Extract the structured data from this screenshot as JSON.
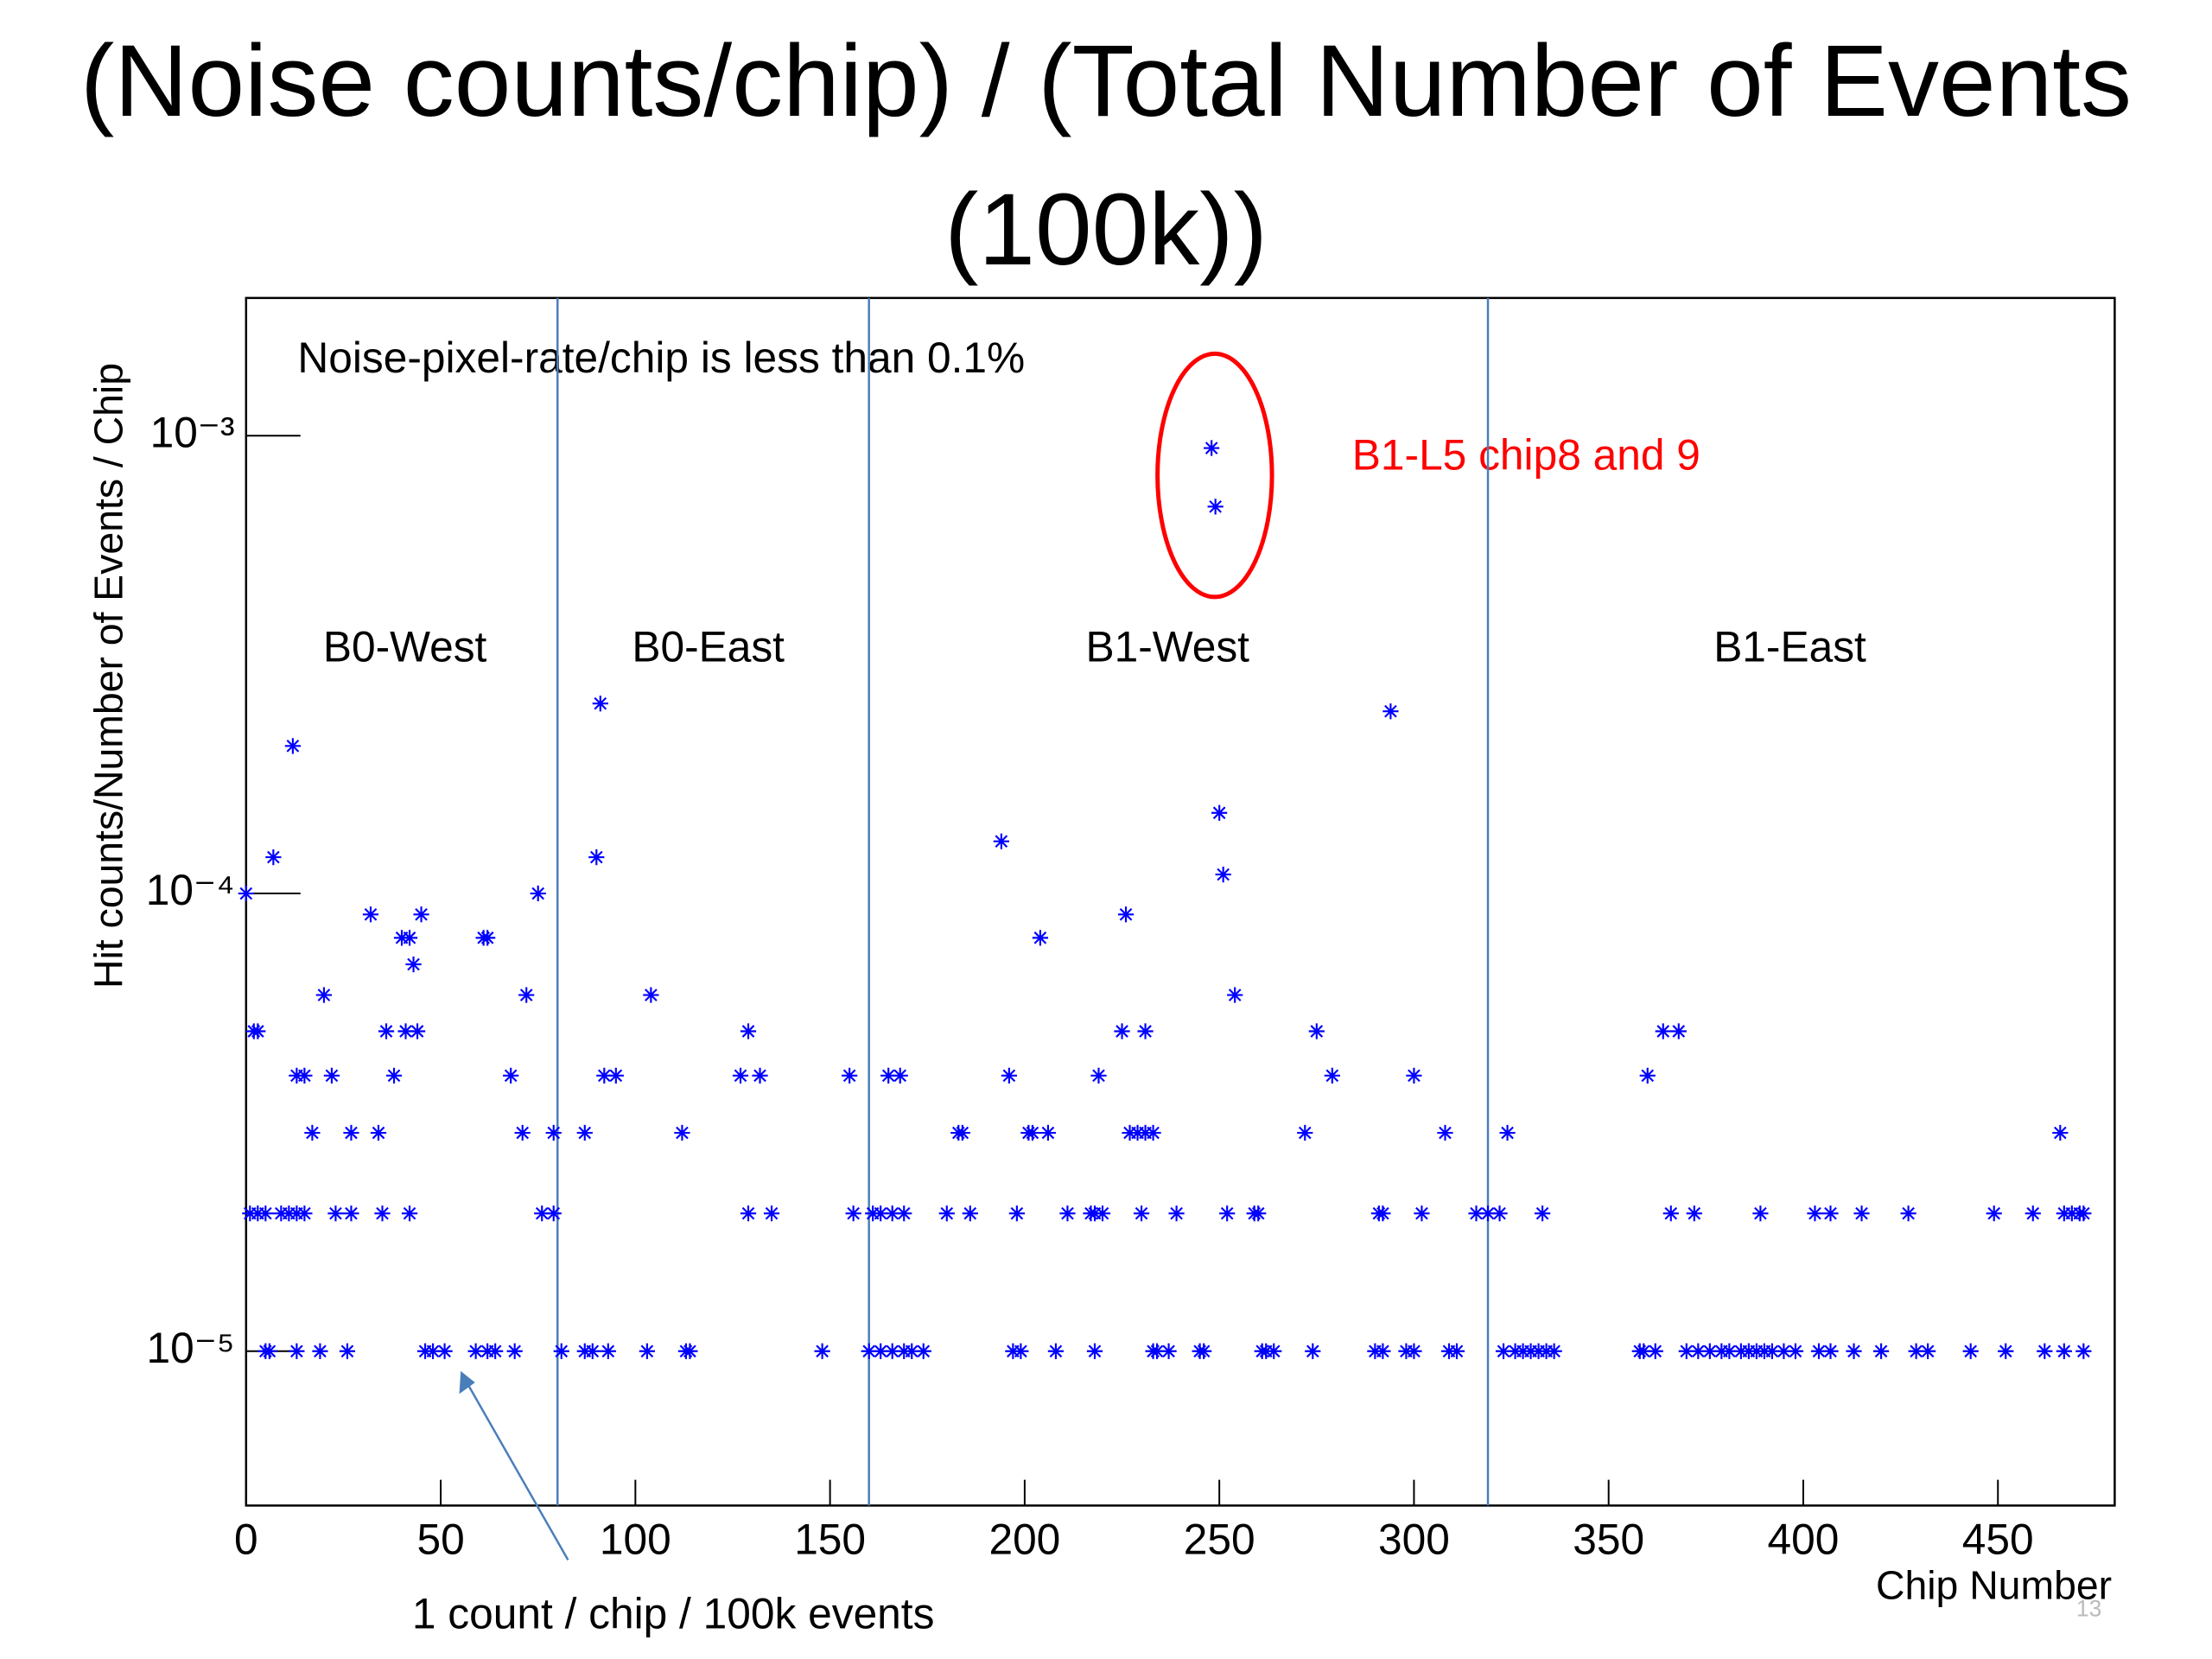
{
  "chart_data": {
    "type": "scatter",
    "title": "(Noise counts/chip) / (Total Number of Events (100k))",
    "x_label": "Chip Number",
    "y_label": "Hit counts/Number of Events / Chip",
    "log_y": true,
    "color": "#0000ff",
    "xlim": [
      0,
      480
    ],
    "xticks": [
      0,
      50,
      100,
      150,
      200,
      250,
      300,
      350,
      400,
      450
    ],
    "ylim": [
      4.6e-06,
      0.002
    ],
    "yticks": [
      {
        "value": 1e-05,
        "label": "10⁻⁵"
      },
      {
        "value": 0.0001,
        "label": "10⁻⁴"
      },
      {
        "value": 0.001,
        "label": "10⁻³"
      }
    ],
    "dividers": [
      80,
      160,
      319
    ],
    "regions": [
      "B0-West",
      "B0-East",
      "B1-West",
      "B1-East"
    ],
    "annotations": [
      "Noise-pixel-rate/chip is less than 0.1%",
      "B1-L5 chip8 and 9",
      "1 count / chip / 100k events"
    ],
    "page_number": "13",
    "x": [
      5,
      6,
      13,
      19,
      26,
      46,
      48,
      51,
      59,
      62,
      64,
      69,
      81,
      87,
      89,
      93,
      103,
      113,
      114,
      148,
      160,
      163,
      166,
      169,
      171,
      174,
      197,
      199,
      208,
      218,
      233,
      234,
      237,
      245,
      246,
      261,
      262,
      264,
      274,
      290,
      292,
      298,
      300,
      309,
      311,
      323,
      326,
      328,
      330,
      332,
      334,
      336,
      358,
      359,
      362,
      370,
      373,
      376,
      379,
      381,
      384,
      386,
      388,
      390,
      392,
      395,
      398,
      404,
      407,
      413,
      420,
      429,
      432,
      443,
      452,
      462,
      467,
      472,
      1,
      3,
      5,
      9,
      11,
      13,
      15,
      23,
      27,
      35,
      42,
      76,
      79,
      129,
      135,
      156,
      161,
      163,
      166,
      169,
      180,
      186,
      198,
      211,
      217,
      218,
      220,
      230,
      239,
      252,
      259,
      260,
      291,
      292,
      302,
      316,
      319,
      322,
      333,
      366,
      372,
      389,
      403,
      407,
      415,
      427,
      449,
      459,
      467,
      469,
      471,
      472,
      17,
      27,
      34,
      71,
      79,
      87,
      112,
      183,
      184,
      201,
      202,
      206,
      227,
      229,
      231,
      233,
      272,
      308,
      324,
      466,
      13,
      15,
      22,
      38,
      68,
      92,
      95,
      127,
      132,
      155,
      165,
      168,
      196,
      219,
      279,
      300,
      360,
      2,
      3,
      36,
      41,
      44,
      129,
      225,
      231,
      275,
      364,
      368,
      20,
      72,
      104,
      254,
      43,
      40,
      42,
      61,
      62,
      204,
      32,
      45,
      226,
      0,
      75,
      251,
      7,
      90,
      194,
      250,
      12,
      294,
      91,
      249,
      248
    ],
    "values": [
      1e-05,
      1e-05,
      1e-05,
      1e-05,
      1e-05,
      1e-05,
      1e-05,
      1e-05,
      1e-05,
      1e-05,
      1e-05,
      1e-05,
      1e-05,
      1e-05,
      1e-05,
      1e-05,
      1e-05,
      1e-05,
      1e-05,
      1e-05,
      1e-05,
      1e-05,
      1e-05,
      1e-05,
      1e-05,
      1e-05,
      1e-05,
      1e-05,
      1e-05,
      1e-05,
      1e-05,
      1e-05,
      1e-05,
      1e-05,
      1e-05,
      1e-05,
      1e-05,
      1e-05,
      1e-05,
      1e-05,
      1e-05,
      1e-05,
      1e-05,
      1e-05,
      1e-05,
      1e-05,
      1e-05,
      1e-05,
      1e-05,
      1e-05,
      1e-05,
      1e-05,
      1e-05,
      1e-05,
      1e-05,
      1e-05,
      1e-05,
      1e-05,
      1e-05,
      1e-05,
      1e-05,
      1e-05,
      1e-05,
      1e-05,
      1e-05,
      1e-05,
      1e-05,
      1e-05,
      1e-05,
      1e-05,
      1e-05,
      1e-05,
      1e-05,
      1e-05,
      1e-05,
      1e-05,
      1e-05,
      1e-05,
      2e-05,
      2e-05,
      2e-05,
      2e-05,
      2e-05,
      2e-05,
      2e-05,
      2e-05,
      2e-05,
      2e-05,
      2e-05,
      2e-05,
      2e-05,
      2e-05,
      2e-05,
      2e-05,
      2e-05,
      2e-05,
      2e-05,
      2e-05,
      2e-05,
      2e-05,
      2e-05,
      2e-05,
      2e-05,
      2e-05,
      2e-05,
      2e-05,
      2e-05,
      2e-05,
      2e-05,
      2e-05,
      2e-05,
      2e-05,
      2e-05,
      2e-05,
      2e-05,
      2e-05,
      2e-05,
      2e-05,
      2e-05,
      2e-05,
      2e-05,
      2e-05,
      2e-05,
      2e-05,
      2e-05,
      2e-05,
      2e-05,
      2e-05,
      2e-05,
      2e-05,
      3e-05,
      3e-05,
      3e-05,
      3e-05,
      3e-05,
      3e-05,
      3e-05,
      3e-05,
      3e-05,
      3e-05,
      3e-05,
      3e-05,
      3e-05,
      3e-05,
      3e-05,
      3e-05,
      3e-05,
      3e-05,
      3e-05,
      3e-05,
      4e-05,
      4e-05,
      4e-05,
      4e-05,
      4e-05,
      4e-05,
      4e-05,
      4e-05,
      4e-05,
      4e-05,
      4e-05,
      4e-05,
      4e-05,
      4e-05,
      4e-05,
      4e-05,
      4e-05,
      5e-05,
      5e-05,
      5e-05,
      5e-05,
      5e-05,
      5e-05,
      5e-05,
      5e-05,
      5e-05,
      5e-05,
      5e-05,
      6e-05,
      6e-05,
      6e-05,
      6e-05,
      7e-05,
      8e-05,
      8e-05,
      8e-05,
      8e-05,
      8e-05,
      9e-05,
      9e-05,
      9e-05,
      0.0001,
      0.0001,
      0.00011,
      0.00012,
      0.00012,
      0.00013,
      0.00015,
      0.00021,
      0.00025,
      0.00026,
      0.0007,
      0.00094
    ]
  }
}
